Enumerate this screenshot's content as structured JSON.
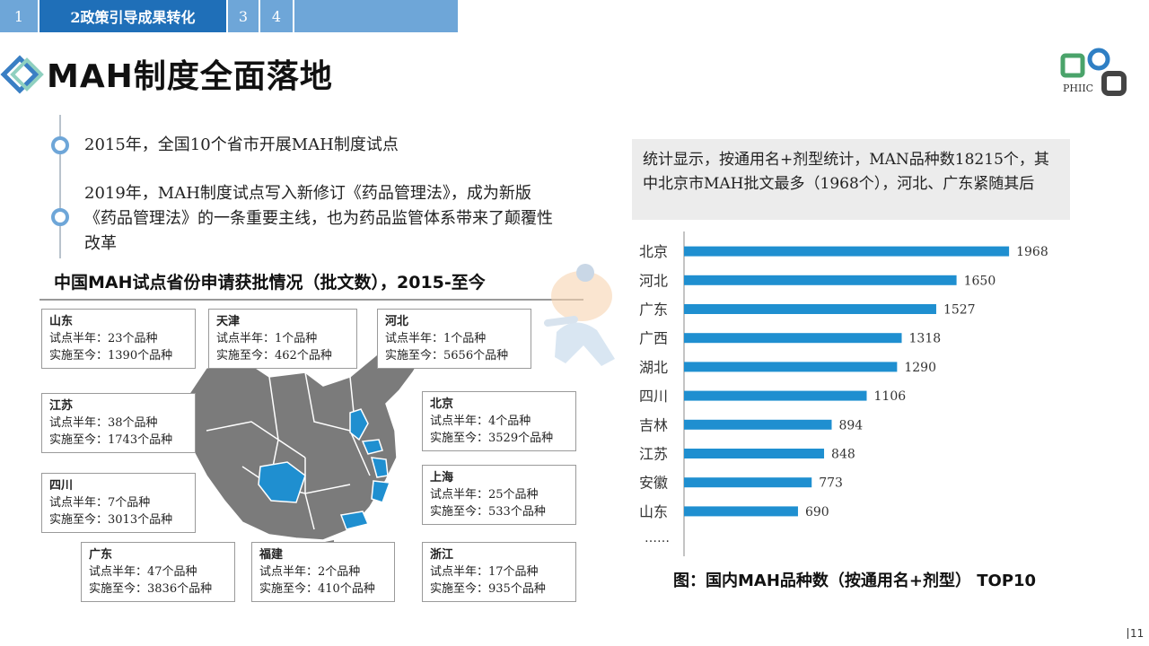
{
  "tabs": [
    {
      "label": "1"
    },
    {
      "label": "2政策引导成果转化"
    },
    {
      "label": "3"
    },
    {
      "label": "4"
    }
  ],
  "page_title": "MAH制度全面落地",
  "logo_text": "PHIIC",
  "bullets": [
    {
      "text": "2015年，全国10个省市开展MAH制度试点"
    },
    {
      "text": "2019年，MAH制度试点写入新修订《药品管理法》，成为新版《药品管理法》的一条重要主线，也为药品监管体系带来了颠覆性改革"
    }
  ],
  "map_heading": "中国MAH试点省份申请获批情况（批文数），2015-至今",
  "provinces": [
    {
      "name": "山东",
      "line1": "试点半年：23个品种",
      "line2": "实施至今：1390个品种"
    },
    {
      "name": "天津",
      "line1": "试点半年：1个品种",
      "line2": "实施至今：462个品种"
    },
    {
      "name": "河北",
      "line1": "试点半年：1个品种",
      "line2": "实施至今：5656个品种"
    },
    {
      "name": "江苏",
      "line1": "试点半年：38个品种",
      "line2": "实施至今：1743个品种"
    },
    {
      "name": "北京",
      "line1": "试点半年：4个品种",
      "line2": "实施至今：3529个品种"
    },
    {
      "name": "四川",
      "line1": "试点半年：7个品种",
      "line2": "实施至今：3013个品种"
    },
    {
      "name": "上海",
      "line1": "试点半年：25个品种",
      "line2": "实施至今：533个品种"
    },
    {
      "name": "广东",
      "line1": "试点半年：47个品种",
      "line2": "实施至今：3836个品种"
    },
    {
      "name": "福建",
      "line1": "试点半年：2个品种",
      "line2": "实施至今：410个品种"
    },
    {
      "name": "浙江",
      "line1": "试点半年：17个品种",
      "line2": "实施至今：935个品种"
    }
  ],
  "summary_text": "统计显示，按通用名+剂型统计，MAN品种数18215个，其中北京市MAH批文最多（1968个），河北、广东紧随其后",
  "chart_data": {
    "type": "bar",
    "orientation": "horizontal",
    "categories": [
      "北京",
      "河北",
      "广东",
      "广西",
      "湖北",
      "四川",
      "吉林",
      "江苏",
      "安徽",
      "山东"
    ],
    "values": [
      1968,
      1650,
      1527,
      1318,
      1290,
      1106,
      894,
      848,
      773,
      690
    ],
    "trailing_label": "……",
    "title": "图：国内MAH品种数（按通用名+剂型） TOP10",
    "xlim": [
      0,
      2000
    ],
    "bar_color": "#1f8fd0",
    "grid": false
  },
  "page_number": "11",
  "colors": {
    "accent": "#1f6fb8",
    "tab_light": "#6ea6d8",
    "map_gray": "#7b7b7b",
    "map_highlight": "#1f8fd0"
  }
}
